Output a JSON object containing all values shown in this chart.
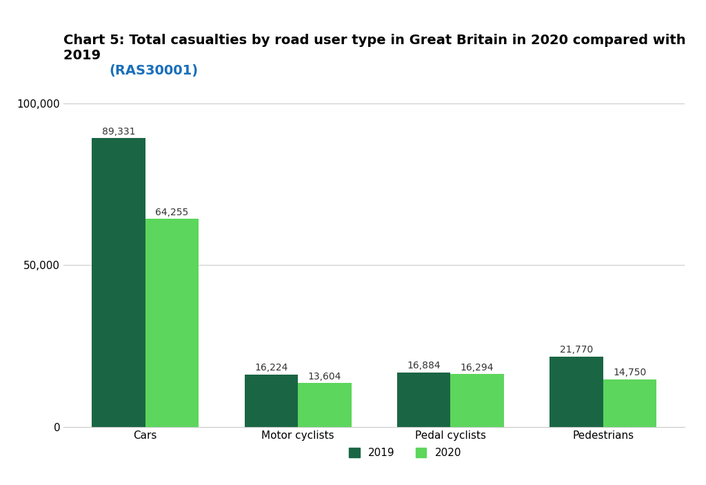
{
  "title_black": "Chart 5: Total casualties by road user type in Great Britain in 2020 compared with\n2019 ",
  "title_link": "(RAS30001)",
  "categories": [
    "Cars",
    "Motor cyclists",
    "Pedal cyclists",
    "Pedestrians"
  ],
  "values_2019": [
    89331,
    16224,
    16884,
    21770
  ],
  "values_2020": [
    64255,
    13604,
    16294,
    14750
  ],
  "color_2019": "#1a6644",
  "color_2020": "#5cd65c",
  "yticks": [
    0,
    50000,
    100000
  ],
  "ytick_labels": [
    "0",
    "50,000",
    "100,000"
  ],
  "ylim": [
    0,
    105000
  ],
  "background_color": "#ffffff",
  "legend_label_2019": "2019",
  "legend_label_2020": "2020",
  "bar_width": 0.35,
  "label_fontsize": 10,
  "title_fontsize": 14,
  "axis_label_fontsize": 11
}
